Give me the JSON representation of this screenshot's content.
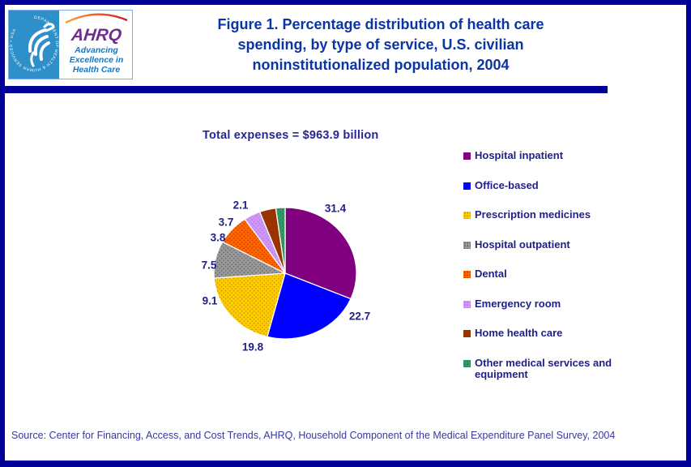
{
  "header": {
    "seal_text": "DEPARTMENT OF HEALTH & HUMAN SERVICES • USA",
    "ahrq_acronym": "AHRQ",
    "ahrq_tagline": "Advancing\nExcellence in\nHealth Care"
  },
  "title": "Figure 1. Percentage distribution of health care\nspending, by type of service, U.S. civilian\nnoninstitutionalized population, 2004",
  "annotation": {
    "total_label": "Total expenses = $963.9 billion"
  },
  "chart_data": {
    "type": "pie",
    "title": "Figure 1. Percentage distribution of health care spending, by type of service, U.S. civilian noninstitutionalized population, 2004",
    "subtitle": "Total expenses = $963.9 billion",
    "start_angle": "12 o'clock",
    "direction": "clockwise",
    "legend_position": "right",
    "units": "percent",
    "categories": [
      "Hospital inpatient",
      "Office-based",
      "Prescription medicines",
      "Hospital outpatient",
      "Dental",
      "Emergency room",
      "Home health care",
      "Other medical services and equipment"
    ],
    "values": [
      31.4,
      22.7,
      19.8,
      9.1,
      7.5,
      3.8,
      3.7,
      2.1
    ],
    "slices": [
      {
        "label": "Hospital inpatient",
        "value": 31.4,
        "color": "#800080",
        "textured": false
      },
      {
        "label": "Office-based",
        "value": 22.7,
        "color": "#0000FF",
        "textured": false
      },
      {
        "label": "Prescription medicines",
        "value": 19.8,
        "color": "#FFCC00",
        "dot_color": "#BF8F00",
        "textured": true
      },
      {
        "label": "Hospital outpatient",
        "value": 9.1,
        "color": "#999999",
        "dot_color": "#5C5C5C",
        "textured": true
      },
      {
        "label": "Dental",
        "value": 7.5,
        "color": "#FF6600",
        "dot_color": "#BB3300",
        "textured": true
      },
      {
        "label": "Emergency room",
        "value": 3.8,
        "color": "#CC99FF",
        "dot_color": "#CC66CC",
        "textured": true
      },
      {
        "label": "Home health care",
        "value": 3.7,
        "color": "#993300",
        "textured": false
      },
      {
        "label": "Other medical services and equipment",
        "value": 2.1,
        "color": "#339966",
        "dot_color": "#26734D",
        "textured": true
      }
    ]
  },
  "source": "Source: Center for Financing, Access, and Cost Trends, AHRQ, Household Component of the Medical Expenditure Panel Survey, 2004",
  "colors": {
    "page_border": "#000099",
    "title_text": "#0A35A3",
    "body_text": "#1F1F85",
    "source_text": "#3838A0",
    "seal_background": "#2E8FC9",
    "ahrq_purple": "#6F2C91",
    "ahrq_blue": "#1B75BC"
  }
}
